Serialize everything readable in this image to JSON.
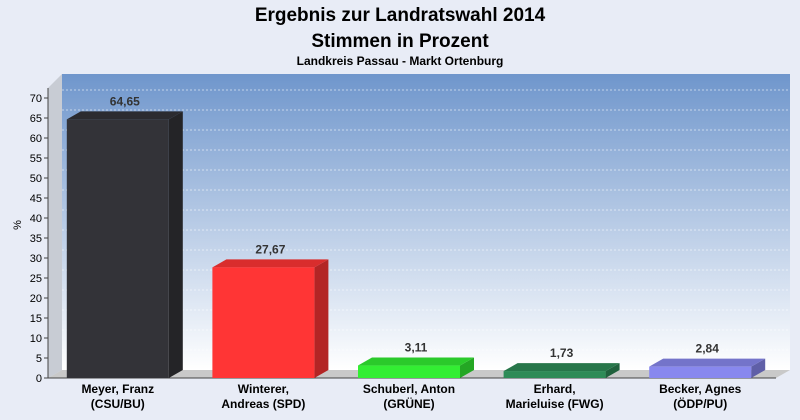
{
  "chart_data": {
    "type": "bar",
    "title": "Ergebnis zur Landratswahl 2014",
    "subtitle": "Stimmen in Prozent",
    "caption": "Landkreis Passau - Markt Ortenburg",
    "ylabel": "%",
    "ylim": [
      0,
      70
    ],
    "yticks": [
      0,
      5,
      10,
      15,
      20,
      25,
      30,
      35,
      40,
      45,
      50,
      55,
      60,
      65,
      70
    ],
    "grid": true,
    "categories": [
      [
        "Meyer, Franz",
        "(CSU/BU)"
      ],
      [
        "Winterer,",
        "Andreas (SPD)"
      ],
      [
        "Schuberl, Anton",
        "(GRÜNE)"
      ],
      [
        "Erhard,",
        "Marieluise (FWG)"
      ],
      [
        "Becker, Agnes",
        "(ÖDP/PU)"
      ]
    ],
    "values": [
      64.65,
      27.67,
      3.11,
      1.73,
      2.84
    ],
    "value_labels": [
      "64,65",
      "27,67",
      "3,11",
      "1,73",
      "2,84"
    ],
    "colors": [
      "#333338",
      "#ff3535",
      "#33ee33",
      "#2e8b57",
      "#8888ee"
    ]
  }
}
